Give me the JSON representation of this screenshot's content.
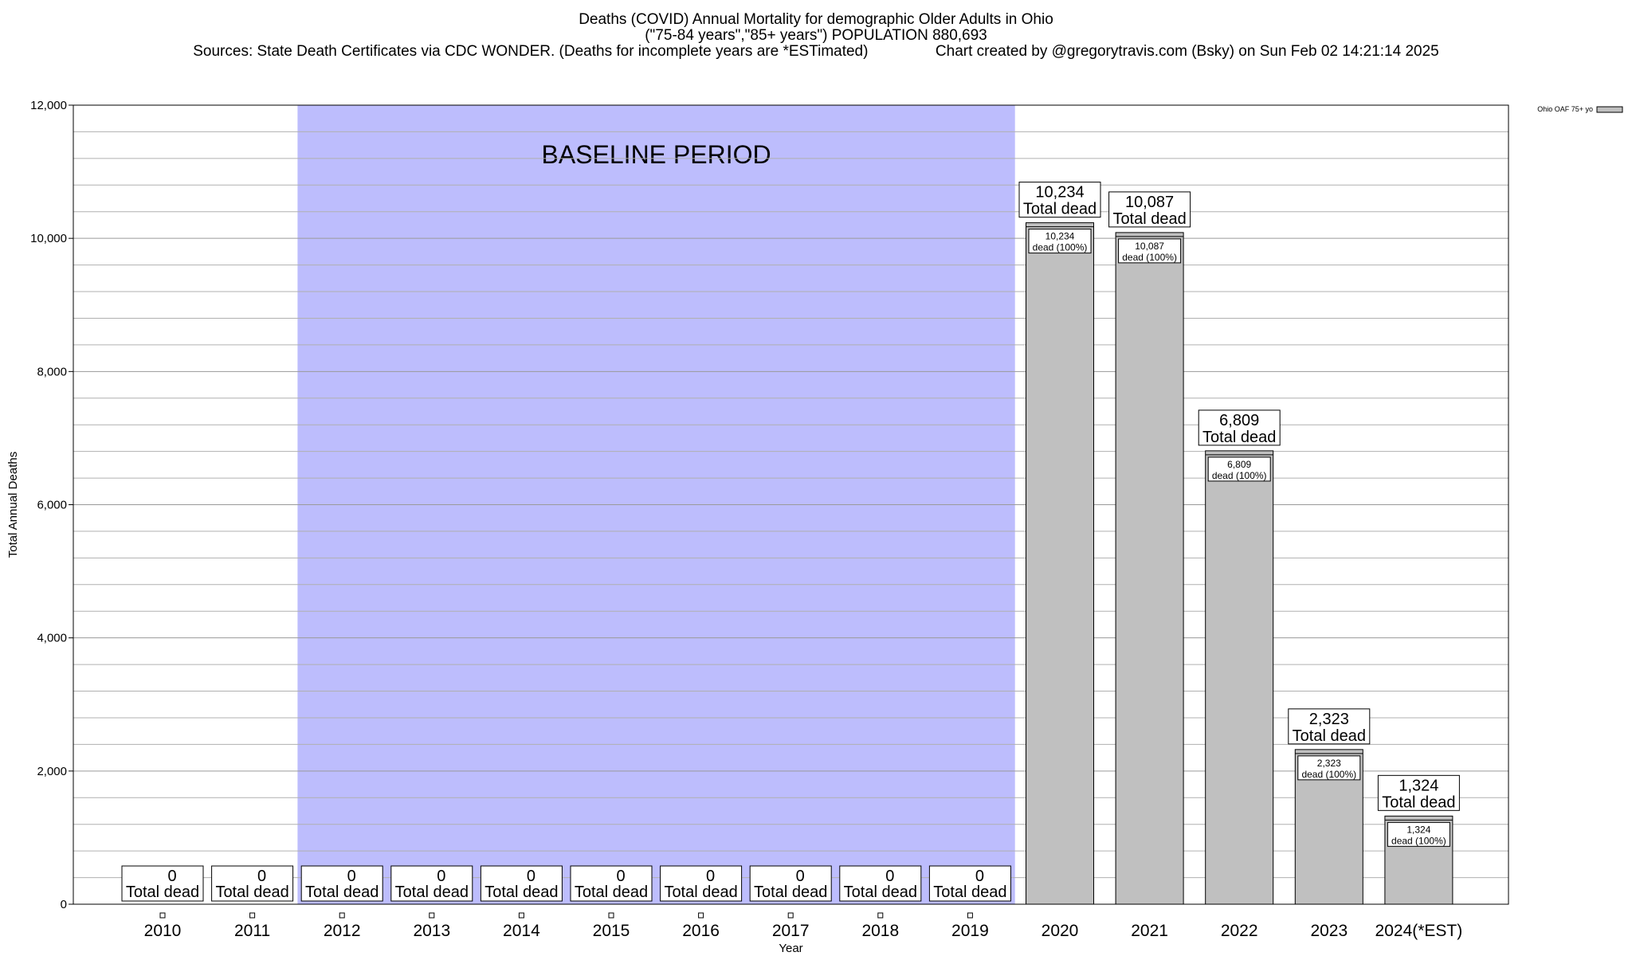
{
  "header": {
    "title_line1": "Deaths (COVID) Annual Mortality for demographic Older Adults in Ohio",
    "title_line2": "(\"75-84 years\",\"85+ years\") POPULATION 880,693",
    "title_line3": "Sources: State Death Certificates via CDC WONDER. (Deaths for incomplete years are *ESTimated)                Chart created by @gregorytravis.com (Bsky) on Sun Feb 02 14:21:14 2025"
  },
  "chart_data": {
    "type": "bar",
    "xlabel": "Year",
    "ylabel": "Total Annual Deaths",
    "ylim": [
      0,
      12000
    ],
    "y_ticks": [
      0,
      2000,
      4000,
      6000,
      8000,
      10000,
      12000
    ],
    "y_tick_labels": [
      "0",
      "2,000",
      "4,000",
      "6,000",
      "8,000",
      "10,000",
      "12,000"
    ],
    "grid": true,
    "categories": [
      "2010",
      "2011",
      "2012",
      "2013",
      "2014",
      "2015",
      "2016",
      "2017",
      "2018",
      "2019",
      "2020",
      "2021",
      "2022",
      "2023",
      "2024(*EST)"
    ],
    "series": [
      {
        "name": "Ohio OAF 75+ yo",
        "values": [
          0,
          0,
          0,
          0,
          0,
          0,
          0,
          0,
          0,
          0,
          10234,
          10087,
          6809,
          2323,
          1324
        ]
      }
    ],
    "total_labels": [
      "0",
      "0",
      "0",
      "0",
      "0",
      "0",
      "0",
      "0",
      "0",
      "0",
      "10,234",
      "10,087",
      "6,809",
      "2,323",
      "1,324"
    ],
    "total_suffix": "Total dead",
    "inner_labels": [
      "",
      "",
      "",
      "",
      "",
      "",
      "",
      "",
      "",
      "",
      "10,234",
      "10,087",
      "6,809",
      "2,323",
      "1,324"
    ],
    "inner_suffix": "dead (100%)",
    "baseline_band": {
      "label": "BASELINE PERIOD",
      "from": "2012",
      "to": "2019"
    },
    "legend_position": "top-right",
    "colors": {
      "bar": "#c0c0c0",
      "band": "#bdbdfd",
      "grid": "#b0b0b0"
    }
  }
}
